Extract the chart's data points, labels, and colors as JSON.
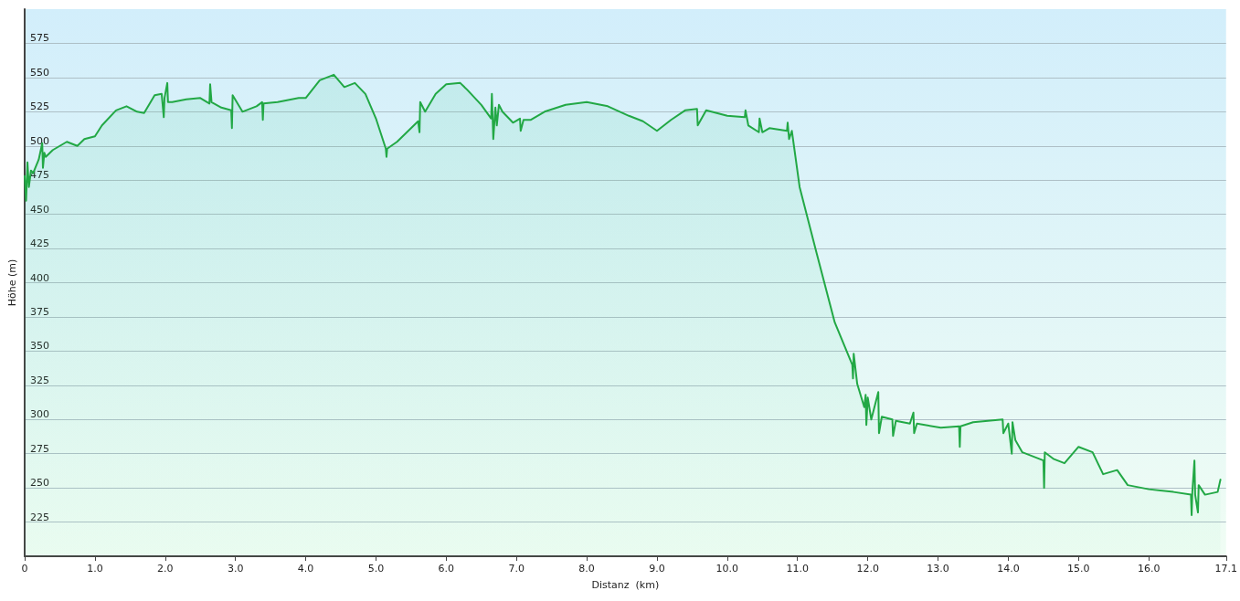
{
  "chart_data": {
    "type": "area",
    "xlabel": "Distanz  (km)",
    "ylabel": "Höhe (m)",
    "xlim": [
      0,
      17.1
    ],
    "xticks": [
      0,
      {
        "value": 1,
        "label": "1.0"
      },
      {
        "value": 2,
        "label": "2.0"
      },
      {
        "value": 3,
        "label": "3.0"
      },
      {
        "value": 4,
        "label": "4.0"
      },
      {
        "value": 5,
        "label": "5.0"
      },
      {
        "value": 6,
        "label": "6.0"
      },
      {
        "value": 7,
        "label": "7.0"
      },
      {
        "value": 8,
        "label": "8.0"
      },
      {
        "value": 9,
        "label": "9.0"
      },
      {
        "value": 10,
        "label": "10.0"
      },
      {
        "value": 11,
        "label": "11.0"
      },
      {
        "value": 12,
        "label": "12.0"
      },
      {
        "value": 13,
        "label": "13.0"
      },
      {
        "value": 14,
        "label": "14.0"
      },
      {
        "value": 15,
        "label": "15.0"
      },
      {
        "value": 16,
        "label": "16.0"
      },
      {
        "value": 17.1,
        "label": "17.1"
      }
    ],
    "ylim": [
      200,
      600
    ],
    "yticks": [
      225,
      250,
      275,
      300,
      325,
      350,
      375,
      400,
      425,
      450,
      475,
      500,
      525,
      550,
      575
    ],
    "grid": "y",
    "marker": "none",
    "line_style": "solid",
    "series": [
      {
        "color": "#22a845",
        "x": [
          0,
          0.02,
          0.04,
          0.06,
          0.09,
          0.12,
          0.2,
          0.25,
          0.26,
          0.28,
          0.3,
          0.4,
          0.6,
          0.75,
          0.85,
          1.0,
          1.1,
          1.3,
          1.45,
          1.6,
          1.7,
          1.85,
          1.95,
          1.98,
          1.99,
          2.03,
          2.04,
          2.1,
          2.3,
          2.5,
          2.63,
          2.64,
          2.66,
          2.8,
          2.94,
          2.95,
          2.96,
          3.1,
          3.3,
          3.38,
          3.39,
          3.4,
          3.6,
          3.9,
          4.0,
          4.2,
          4.4,
          4.55,
          4.7,
          4.85,
          5.0,
          5.14,
          5.15,
          5.16,
          5.3,
          5.5,
          5.6,
          5.62,
          5.63,
          5.7,
          5.85,
          6.0,
          6.2,
          6.3,
          6.5,
          6.64,
          6.65,
          6.67,
          6.7,
          6.72,
          6.75,
          6.8,
          6.95,
          7.05,
          7.06,
          7.1,
          7.2,
          7.4,
          7.7,
          8.0,
          8.3,
          8.6,
          8.8,
          9.0,
          9.2,
          9.4,
          9.57,
          9.58,
          9.7,
          10.0,
          10.25,
          10.26,
          10.3,
          10.45,
          10.46,
          10.5,
          10.6,
          10.85,
          10.86,
          10.88,
          10.92,
          11.03,
          11.27,
          11.53,
          11.78,
          11.79,
          11.8,
          11.85,
          11.95,
          11.97,
          11.98,
          12.0,
          12.05,
          12.15,
          12.16,
          12.2,
          12.35,
          12.36,
          12.4,
          12.6,
          12.65,
          12.66,
          12.7,
          13.04,
          13.3,
          13.31,
          13.32,
          13.5,
          13.92,
          13.93,
          14.0,
          14.05,
          14.06,
          14.1,
          14.2,
          14.5,
          14.51,
          14.52,
          14.65,
          14.8,
          15.0,
          15.2,
          15.35,
          15.55,
          15.7,
          16.0,
          16.35,
          16.6,
          16.61,
          16.62,
          16.65,
          16.66,
          16.7,
          16.71,
          16.8,
          16.98,
          17.02
        ],
        "values": [
          478,
          460,
          488,
          470,
          482,
          480,
          490,
          502,
          484,
          495,
          492,
          497,
          503,
          500,
          505,
          507,
          515,
          526,
          529,
          525,
          524,
          537,
          538,
          521,
          535,
          546,
          532,
          532,
          534,
          535,
          531,
          545,
          532,
          528,
          526,
          513,
          537,
          525,
          529,
          532,
          519,
          531,
          532,
          535,
          535,
          548,
          552,
          543,
          546,
          538,
          520,
          498,
          492,
          498,
          503,
          513,
          518,
          510,
          532,
          525,
          538,
          545,
          546,
          541,
          530,
          520,
          538,
          505,
          528,
          515,
          530,
          525,
          517,
          520,
          511,
          519,
          519,
          525,
          530,
          532,
          529,
          522,
          518,
          511,
          519,
          526,
          527,
          515,
          526,
          522,
          521,
          526,
          515,
          510,
          520,
          510,
          513,
          511,
          517,
          505,
          511,
          470,
          422,
          371,
          340,
          330,
          348,
          326,
          309,
          318,
          296,
          316,
          300,
          320,
          290,
          302,
          300,
          288,
          299,
          297,
          305,
          290,
          297,
          294,
          295,
          280,
          295,
          298,
          300,
          290,
          297,
          275,
          298,
          285,
          276,
          270,
          250,
          276,
          271,
          268,
          280,
          276,
          260,
          263,
          252,
          249,
          247,
          245,
          230,
          247,
          270,
          245,
          232,
          252,
          245,
          247,
          256
        ]
      }
    ]
  }
}
